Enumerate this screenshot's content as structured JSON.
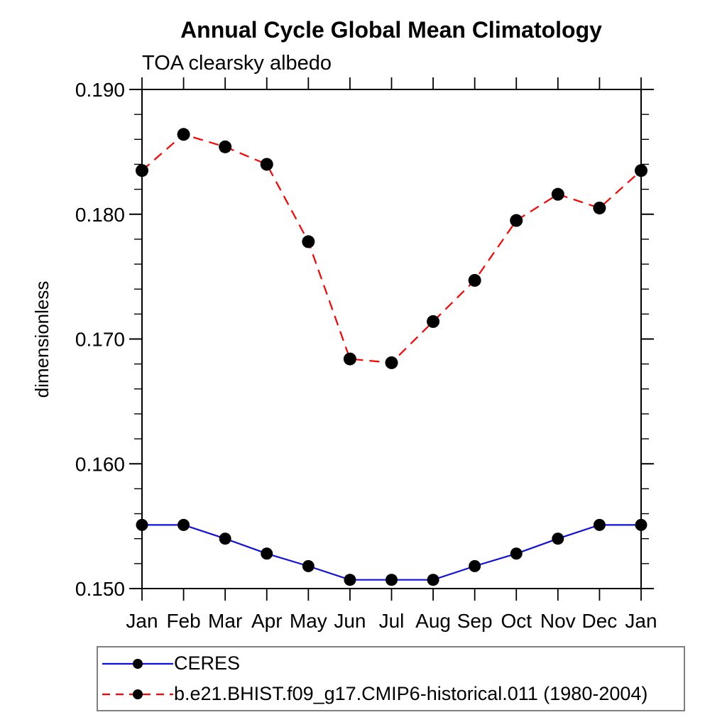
{
  "title": "Annual Cycle Global Mean Climatology",
  "subtitle": "TOA clearsky albedo",
  "chart_data": {
    "type": "line",
    "x_categories": [
      "Jan",
      "Feb",
      "Mar",
      "Apr",
      "May",
      "Jun",
      "Jul",
      "Aug",
      "Sep",
      "Oct",
      "Nov",
      "Dec",
      "Jan"
    ],
    "xlabel": "",
    "ylabel": "dimensionless",
    "ylim": [
      0.15,
      0.19
    ],
    "ytick_major_values": [
      0.15,
      0.16,
      0.17,
      0.18,
      0.19
    ],
    "ytick_labels": [
      "0.150",
      "0.160",
      "0.170",
      "0.180",
      "0.190"
    ],
    "ytick_minor_interval": 0.002,
    "grid": false,
    "legend_position": "bottom-left",
    "series": [
      {
        "name": "CERES",
        "color": "#1010dd",
        "line_style": "solid",
        "marker": "filled-circle",
        "marker_color": "#000000",
        "values": [
          0.1551,
          0.1551,
          0.154,
          0.1528,
          0.1518,
          0.1507,
          0.1507,
          0.1507,
          0.1518,
          0.1528,
          0.154,
          0.1551,
          0.1551
        ]
      },
      {
        "name": "b.e21.BHIST.f09_g17.CMIP6-historical.011 (1980-2004)",
        "color": "#ff0000",
        "line_style": "dashed",
        "marker": "filled-circle",
        "marker_color": "#000000",
        "values": [
          0.1835,
          0.1864,
          0.1854,
          0.184,
          0.1778,
          0.1684,
          0.1681,
          0.1714,
          0.1747,
          0.1795,
          0.1816,
          0.1805,
          0.1835
        ]
      }
    ]
  }
}
